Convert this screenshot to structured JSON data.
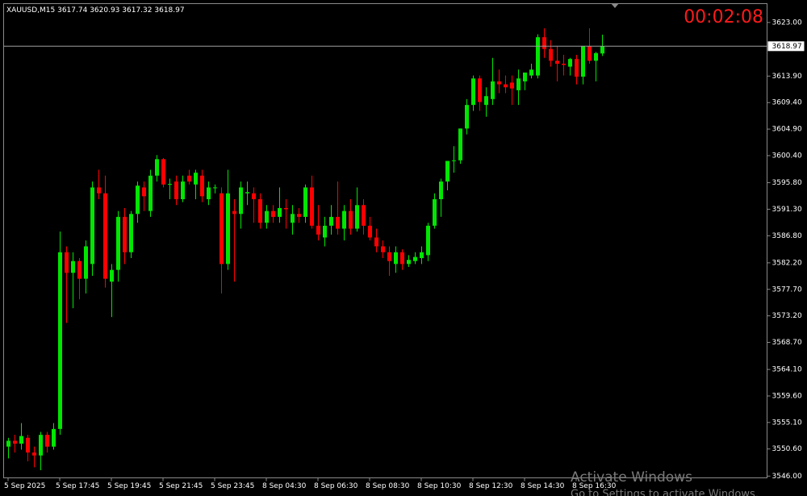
{
  "chart_data": {
    "type": "candlestick",
    "title": "XAUUSD,M15",
    "categories": [
      "5 Sep 2025",
      null,
      null,
      null,
      null,
      null,
      null,
      null,
      "5 Sep 17:45",
      null,
      null,
      null,
      null,
      null,
      null,
      null,
      "5 Sep 19:45",
      null,
      null,
      null,
      null,
      null,
      null,
      null,
      "5 Sep 21:45",
      null,
      null,
      null,
      null,
      null,
      null,
      null,
      "5 Sep 23:45",
      null,
      null,
      null,
      null,
      null,
      null,
      null,
      "8 Sep 04:30",
      null,
      null,
      null,
      null,
      null,
      null,
      null,
      "8 Sep 06:30",
      null,
      null,
      null,
      null,
      null,
      null,
      null,
      "8 Sep 08:30",
      null,
      null,
      null,
      null,
      null,
      null,
      null,
      "8 Sep 10:30",
      null,
      null,
      null,
      null,
      null,
      null,
      null,
      "8 Sep 12:30",
      null,
      null,
      null,
      null,
      null,
      null,
      null,
      "8 Sep 14:30",
      null,
      null,
      null,
      null,
      null,
      null,
      null,
      "8 Sep 16:30",
      null,
      null,
      null,
      null
    ],
    "open": [
      3551,
      3552,
      3551.5,
      3552.5,
      3550,
      3549.5,
      3553,
      3551,
      3554,
      3584,
      3580.5,
      3582.5,
      3579.5,
      3582,
      3595,
      3594,
      3579,
      3581,
      3590,
      3584,
      3590.5,
      3595,
      3591,
      3597,
      3599.8,
      3595.5,
      3596,
      3593,
      3597,
      3595.5,
      3597,
      3593,
      3595,
      3594,
      3582,
      3591,
      3590.5,
      3594,
      3594,
      3593,
      3589,
      3591,
      3590,
      3591.5,
      3589,
      3590.5,
      3590,
      3595,
      3588.5,
      3586.5,
      3588.5,
      3590,
      3588,
      3591,
      3588,
      3592,
      3588.5,
      3586.5,
      3585,
      3584,
      3582,
      3584,
      3582,
      3582.5,
      3583,
      3583.5,
      3588.5,
      3593,
      3596,
      3599.5,
      3599.6,
      3605,
      3609,
      3613.5,
      3609,
      3610,
      3613,
      3612.5,
      3612.8,
      3611.5,
      3613,
      3614,
      3614,
      3620.5,
      3618.5,
      3616.5,
      3616,
      3615.5,
      3616.8,
      3613.8,
      3619,
      3616.5,
      3617.74
    ],
    "high": [
      3552.5,
      3553,
      3555,
      3553,
      3551,
      3553.5,
      3553.5,
      3555,
      3587.5,
      3585,
      3584,
      3583,
      3586,
      3596,
      3598,
      3597,
      3582,
      3591,
      3591.5,
      3591,
      3596,
      3596,
      3598,
      3600.5,
      3600,
      3596.5,
      3597,
      3597,
      3598,
      3598,
      3598,
      3596,
      3595.5,
      3595,
      3598,
      3593,
      3596,
      3596,
      3595,
      3594,
      3592,
      3592,
      3595,
      3593,
      3592,
      3591.5,
      3595.5,
      3597,
      3592,
      3590,
      3592,
      3596,
      3592,
      3593,
      3595,
      3593,
      3590,
      3588,
      3586,
      3585,
      3585,
      3584.5,
      3583.5,
      3584,
      3585,
      3589,
      3594,
      3596.5,
      3599.5,
      3602,
      3605,
      3610,
      3614,
      3614,
      3612,
      3617,
      3615,
      3614,
      3614,
      3615,
      3614.5,
      3616,
      3621,
      3622,
      3620,
      3619,
      3617.5,
      3617,
      3617.5,
      3619,
      3622,
      3618,
      3620.93
    ],
    "low": [
      3549,
      3550,
      3550.5,
      3548.5,
      3547.5,
      3547,
      3550,
      3550.5,
      3553,
      3572,
      3574.5,
      3576,
      3577,
      3580,
      3593,
      3578,
      3573,
      3579,
      3582,
      3583,
      3589,
      3591,
      3590,
      3596,
      3595,
      3593,
      3592,
      3592.5,
      3595.5,
      3593,
      3592.5,
      3592,
      3594,
      3577,
      3581,
      3579,
      3588,
      3592,
      3589,
      3588,
      3588,
      3589,
      3589,
      3588,
      3587,
      3589,
      3589,
      3588,
      3586,
      3585,
      3587,
      3587,
      3586,
      3587,
      3587.5,
      3587,
      3586,
      3584,
      3583,
      3580,
      3580.5,
      3581,
      3581.5,
      3582,
      3582,
      3582.5,
      3588,
      3590,
      3594.5,
      3597.5,
      3599,
      3604,
      3608,
      3608,
      3607,
      3609,
      3611,
      3611,
      3609,
      3609,
      3611.5,
      3613.5,
      3613.5,
      3617,
      3615.5,
      3613,
      3614,
      3614,
      3612.5,
      3612.5,
      3616,
      3613,
      3617.32
    ],
    "close": [
      3552,
      3551.5,
      3552.8,
      3550,
      3549.5,
      3553,
      3551,
      3554,
      3584,
      3580.5,
      3582.5,
      3579.5,
      3585,
      3595,
      3594,
      3579.5,
      3581,
      3590,
      3584,
      3590.5,
      3595.3,
      3593.5,
      3597,
      3599.8,
      3595.5,
      3595.6,
      3593,
      3596,
      3596,
      3597.5,
      3593.5,
      3595,
      3595,
      3582,
      3594,
      3590.5,
      3595,
      3594.2,
      3593,
      3589,
      3591,
      3590,
      3591.5,
      3591.3,
      3590.5,
      3590,
      3595,
      3588.5,
      3587,
      3588.5,
      3590,
      3588,
      3591,
      3588,
      3592,
      3588.5,
      3586.5,
      3585,
      3584,
      3582.5,
      3584,
      3582,
      3582.7,
      3583.2,
      3584,
      3588.5,
      3593,
      3596,
      3599.5,
      3599.6,
      3605,
      3609,
      3613.5,
      3609.5,
      3610.5,
      3613,
      3612.5,
      3612,
      3611.8,
      3613.5,
      3614.5,
      3615,
      3620.5,
      3618.5,
      3616.5,
      3616,
      3615.8,
      3616.8,
      3613.8,
      3619,
      3616.5,
      3617.8,
      3618.97
    ],
    "up_color": "#00e600",
    "down_color": "#ff0000",
    "ylim": [
      3545.7,
      3626.2
    ],
    "yticks": [
      {
        "value": 3623,
        "label": "3623.00"
      },
      {
        "value": 3613.9,
        "label": "3613.90"
      },
      {
        "value": 3609.4,
        "label": "3609.40"
      },
      {
        "value": 3604.9,
        "label": "3604.90"
      },
      {
        "value": 3600.4,
        "label": "3600.40"
      },
      {
        "value": 3595.8,
        "label": "3595.80"
      },
      {
        "value": 3591.3,
        "label": "3591.30"
      },
      {
        "value": 3586.8,
        "label": "3586.80"
      },
      {
        "value": 3582.2,
        "label": "3582.20"
      },
      {
        "value": 3577.7,
        "label": "3577.70"
      },
      {
        "value": 3573.2,
        "label": "3573.20"
      },
      {
        "value": 3568.7,
        "label": "3568.70"
      },
      {
        "value": 3564.1,
        "label": "3564.10"
      },
      {
        "value": 3559.6,
        "label": "3559.60"
      },
      {
        "value": 3555.1,
        "label": "3555.10"
      },
      {
        "value": 3550.6,
        "label": "3550.60"
      },
      {
        "value": 3546,
        "label": "3546.00"
      }
    ],
    "grid": false
  },
  "countdown": "00:02:08",
  "watermark": {
    "title": "Activate Windows",
    "subtitle": "Go to Settings to activate Windows."
  }
}
